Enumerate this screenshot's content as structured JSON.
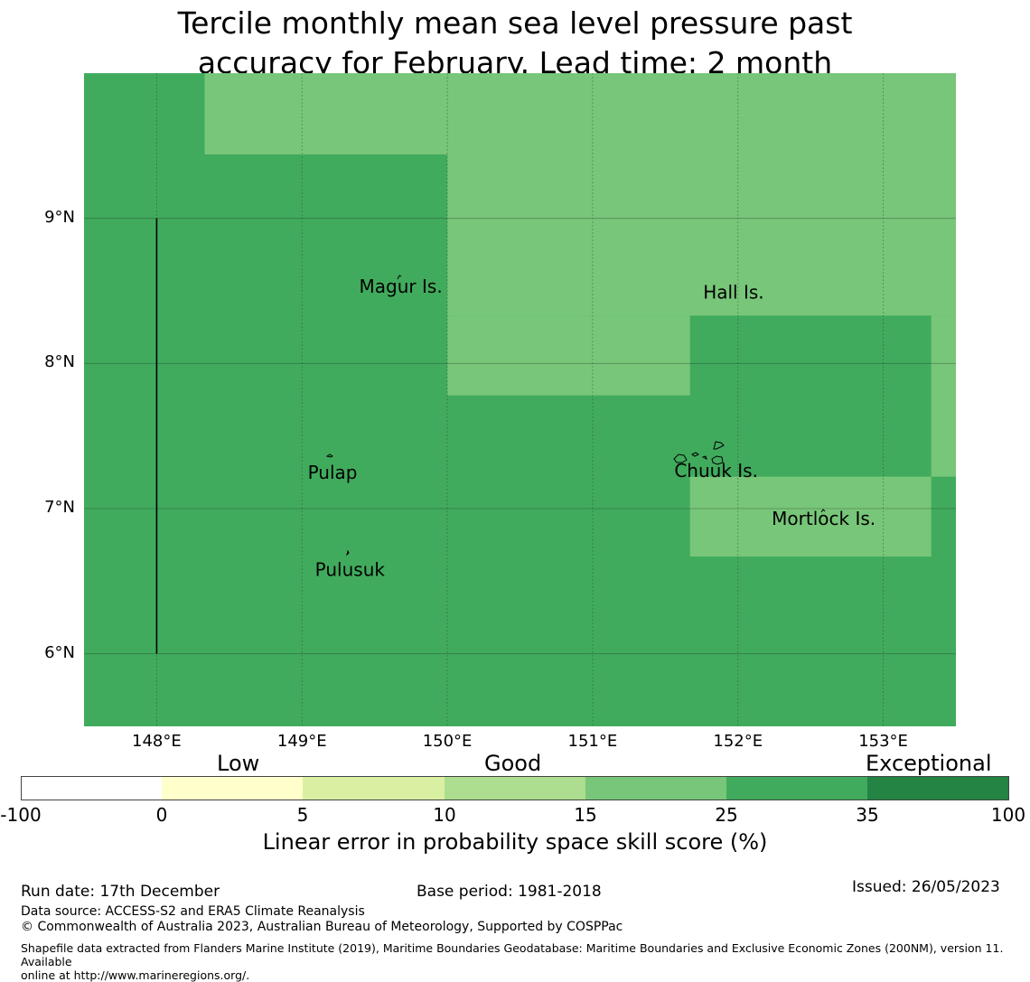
{
  "title": {
    "line1": "Tercile monthly mean sea level pressure past",
    "line2": "accuracy for February. Lead time: 2 month"
  },
  "map": {
    "lat_range": [
      5.5,
      10.0
    ],
    "lon_range": [
      147.5,
      153.5
    ],
    "lat_ticks": [
      {
        "value": 9,
        "label": "9°N"
      },
      {
        "value": 8,
        "label": "8°N"
      },
      {
        "value": 7,
        "label": "7°N"
      },
      {
        "value": 6,
        "label": "6°N"
      }
    ],
    "lon_ticks": [
      {
        "value": 148,
        "label": "148°E"
      },
      {
        "value": 149,
        "label": "149°E"
      },
      {
        "value": 150,
        "label": "150°E"
      },
      {
        "value": 151,
        "label": "151°E"
      },
      {
        "value": 152,
        "label": "152°E"
      },
      {
        "value": 153,
        "label": "153°E"
      }
    ],
    "background_color": "#41ab5d",
    "skill_regions": [
      {
        "name": "north-west",
        "lon": [
          148.33,
          150.0
        ],
        "lat": [
          9.44,
          10.0
        ],
        "color": "#78c679"
      },
      {
        "name": "north-east",
        "lon": [
          150.0,
          153.5
        ],
        "lat": [
          8.33,
          10.0
        ],
        "color": "#78c679"
      },
      {
        "name": "mid-band",
        "lon": [
          150.0,
          151.67
        ],
        "lat": [
          7.78,
          8.33
        ],
        "color": "#78c679"
      },
      {
        "name": "east-edge-high",
        "lon": [
          153.33,
          153.5
        ],
        "lat": [
          8.89,
          10.0
        ],
        "color": "#78c679"
      },
      {
        "name": "east-edge",
        "lon": [
          153.33,
          153.5
        ],
        "lat": [
          7.22,
          8.33
        ],
        "color": "#78c679"
      },
      {
        "name": "mortlock-block",
        "lon": [
          151.67,
          153.33
        ],
        "lat": [
          6.67,
          7.22
        ],
        "color": "#78c679"
      }
    ],
    "boundary_line": {
      "lon": 148.0,
      "lat": [
        6.0,
        9.0
      ]
    },
    "places": [
      {
        "label": "Magur Is.",
        "lon": 149.68,
        "lat": 8.53
      },
      {
        "label": "Hall Is.",
        "lon": 151.97,
        "lat": 8.49
      },
      {
        "label": "Pulap",
        "lon": 149.21,
        "lat": 7.25
      },
      {
        "label": "Chuuk Is.",
        "lon": 151.85,
        "lat": 7.26
      },
      {
        "label": "Mortlock Is.",
        "lon": 152.59,
        "lat": 6.93
      },
      {
        "label": "Pulusuk",
        "lon": 149.33,
        "lat": 6.58
      }
    ]
  },
  "colorbar": {
    "categories": [
      {
        "label": "Low"
      },
      {
        "label": "Good"
      },
      {
        "label": "Exceptional"
      }
    ],
    "bins": [
      {
        "from": "-100",
        "to": "0",
        "color": "#ffffff"
      },
      {
        "from": "0",
        "to": "5",
        "color": "#ffffcc"
      },
      {
        "from": "5",
        "to": "10",
        "color": "#d9f0a3"
      },
      {
        "from": "10",
        "to": "15",
        "color": "#addd8e"
      },
      {
        "from": "15",
        "to": "25",
        "color": "#78c679"
      },
      {
        "from": "25",
        "to": "35",
        "color": "#41ab5d"
      },
      {
        "from": "35",
        "to": "100",
        "color": "#238443"
      }
    ],
    "tick_labels": [
      "-100",
      "0",
      "5",
      "10",
      "15",
      "25",
      "35",
      "100"
    ],
    "label": "Linear error in probability space skill score (%)"
  },
  "footer": {
    "run_date": "Run date: 17th December",
    "base_period": "Base period: 1981-2018",
    "issued": "Issued: 26/05/2023",
    "data_source": "Data source: ACCESS-S2 and ERA5 Climate Reanalysis",
    "copyright": "© Commonwealth of Australia 2023, Australian Bureau of Meteorology, Supported by COSPPac",
    "shapefile_line1": "Shapefile data extracted from Flanders Marine Institute (2019), Maritime Boundaries Geodatabase: Maritime Boundaries and Exclusive Economic Zones (200NM), version 11. Available",
    "shapefile_line2": "online at http://www.marineregions.org/."
  }
}
